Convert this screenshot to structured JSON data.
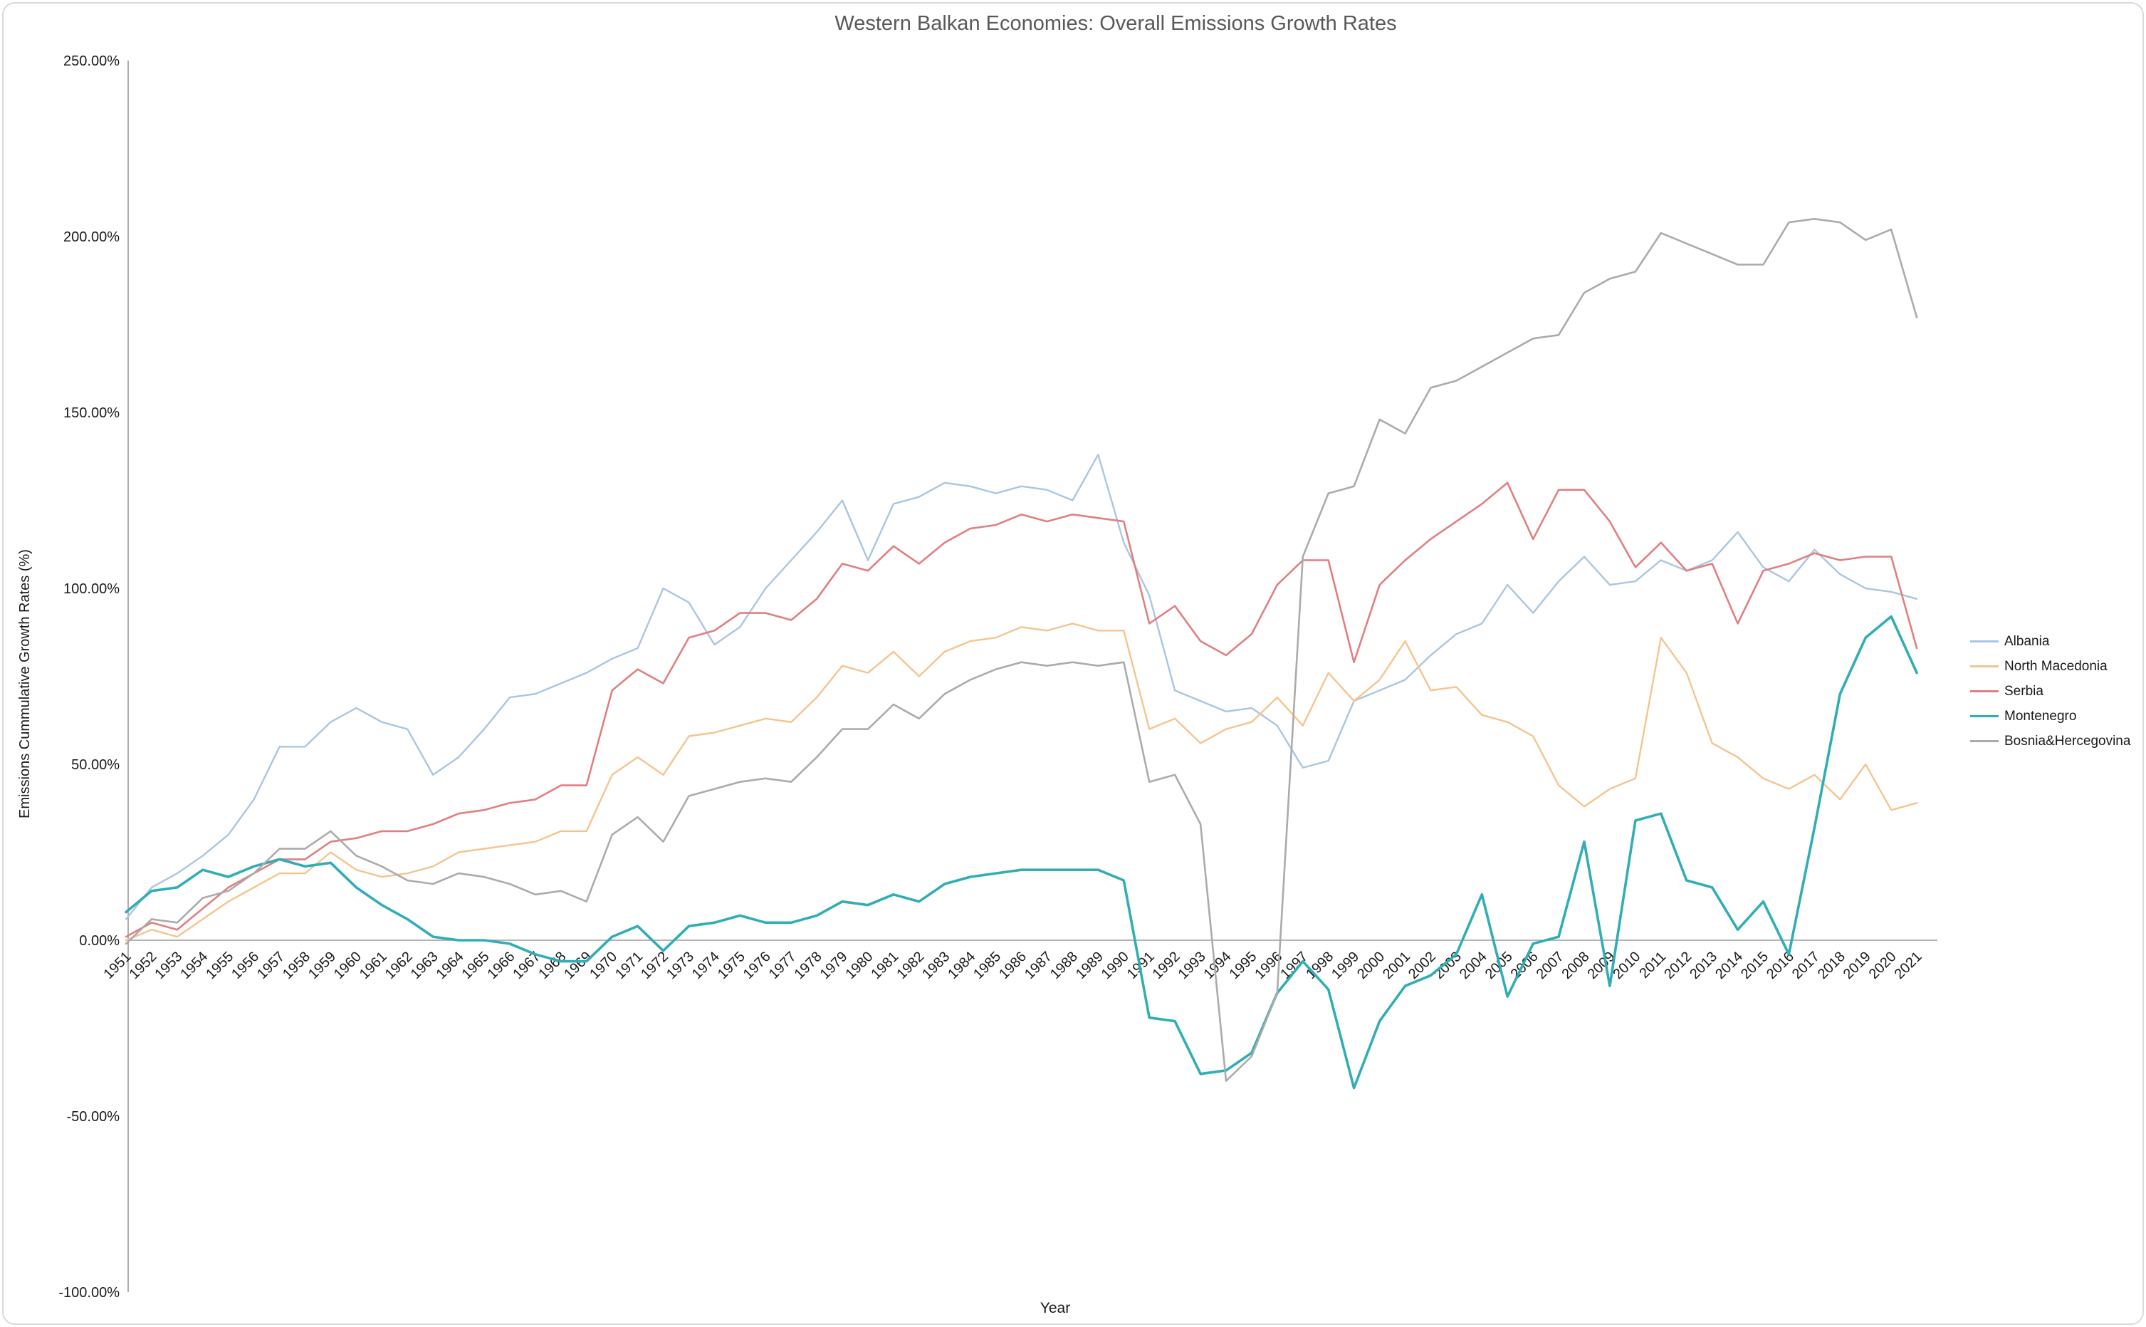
{
  "window": {
    "title": "Western Balkan Economies: Overall Emissions Growth Rates"
  },
  "chart_data": {
    "type": "line",
    "title": "Western Balkan Economies: Overall Emissions Growth Rates",
    "xlabel": "Year",
    "ylabel": "Emissions Cummulative Growth Rates (%)",
    "legend_position": "right",
    "grid": false,
    "ylim": [
      -100,
      250
    ],
    "y_tick_labels": [
      "250.00%",
      "200.00%",
      "150.00%",
      "100.00%",
      "50.00%",
      "0.00%",
      "-50.00%",
      "-100.00%"
    ],
    "y_tick_values": [
      250,
      200,
      150,
      100,
      50,
      0,
      -50,
      -100
    ],
    "x": [
      1951,
      1952,
      1953,
      1954,
      1955,
      1956,
      1957,
      1958,
      1959,
      1960,
      1961,
      1962,
      1963,
      1964,
      1965,
      1966,
      1967,
      1968,
      1969,
      1970,
      1971,
      1972,
      1973,
      1974,
      1975,
      1976,
      1977,
      1978,
      1979,
      1980,
      1981,
      1982,
      1983,
      1984,
      1985,
      1986,
      1987,
      1988,
      1989,
      1990,
      1991,
      1992,
      1993,
      1994,
      1995,
      1996,
      1997,
      1998,
      1999,
      2000,
      2001,
      2002,
      2003,
      2004,
      2005,
      2006,
      2007,
      2008,
      2009,
      2010,
      2011,
      2012,
      2013,
      2014,
      2015,
      2016,
      2017,
      2018,
      2019,
      2020,
      2021
    ],
    "axis_color": "#9b9b9b",
    "tick_label_color": "#1a1a1a",
    "series": [
      {
        "name": "Albania",
        "color": "#a9c6e1",
        "width": 2.4,
        "values": [
          6,
          15,
          19,
          24,
          30,
          40,
          55,
          55,
          62,
          66,
          62,
          60,
          47,
          52,
          60,
          69,
          70,
          73,
          76,
          80,
          83,
          100,
          96,
          84,
          89,
          100,
          108,
          116,
          125,
          108,
          124,
          126,
          130,
          129,
          127,
          129,
          128,
          125,
          138,
          113,
          98,
          71,
          68,
          65,
          66,
          61,
          49,
          51,
          68,
          71,
          74,
          81,
          87,
          90,
          101,
          93,
          102,
          109,
          101,
          102,
          108,
          105,
          108,
          116,
          106,
          102,
          111,
          104,
          100,
          99,
          97
        ]
      },
      {
        "name": "North Macedonia",
        "color": "#f5c48e",
        "width": 2.4,
        "values": [
          0,
          3,
          1,
          6,
          11,
          15,
          19,
          19,
          25,
          20,
          18,
          19,
          21,
          25,
          26,
          27,
          28,
          31,
          31,
          47,
          52,
          47,
          58,
          59,
          61,
          63,
          62,
          69,
          78,
          76,
          82,
          75,
          82,
          85,
          86,
          89,
          88,
          90,
          88,
          88,
          60,
          63,
          56,
          60,
          62,
          69,
          61,
          76,
          68,
          74,
          85,
          71,
          72,
          64,
          62,
          58,
          44,
          38,
          43,
          46,
          86,
          76,
          56,
          52,
          46,
          43,
          47,
          40,
          50,
          37,
          39
        ]
      },
      {
        "name": "Serbia",
        "color": "#e07f80",
        "width": 2.6,
        "values": [
          1,
          5,
          3,
          9,
          15,
          19,
          23,
          23,
          28,
          29,
          31,
          31,
          33,
          36,
          37,
          39,
          40,
          44,
          44,
          71,
          77,
          73,
          86,
          88,
          93,
          93,
          91,
          97,
          107,
          105,
          112,
          107,
          113,
          117,
          118,
          121,
          119,
          121,
          120,
          119,
          90,
          95,
          85,
          81,
          87,
          101,
          108,
          108,
          79,
          101,
          108,
          114,
          119,
          124,
          130,
          114,
          128,
          128,
          119,
          106,
          113,
          105,
          107,
          90,
          105,
          107,
          110,
          108,
          109,
          109,
          83
        ]
      },
      {
        "name": "Montenegro",
        "color": "#30adb5",
        "width": 3.6,
        "values": [
          8,
          14,
          15,
          20,
          18,
          21,
          23,
          21,
          22,
          15,
          10,
          6,
          1,
          0,
          0,
          -1,
          -4,
          -6,
          -6,
          1,
          4,
          -3,
          4,
          5,
          7,
          5,
          5,
          7,
          11,
          10,
          13,
          11,
          16,
          18,
          19,
          20,
          20,
          20,
          20,
          17,
          -22,
          -23,
          -38,
          -37,
          -32,
          -15,
          -6,
          -14,
          -42,
          -23,
          -13,
          -10,
          -4,
          13,
          -16,
          -1,
          1,
          28,
          -13,
          34,
          36,
          17,
          15,
          3,
          11,
          -4,
          32,
          70,
          86,
          92,
          76
        ]
      },
      {
        "name": "Bosnia&Hercegovina",
        "color": "#ababab",
        "width": 2.6,
        "values": [
          -1,
          6,
          5,
          12,
          14,
          19,
          26,
          26,
          31,
          24,
          21,
          17,
          16,
          19,
          18,
          16,
          13,
          14,
          11,
          30,
          35,
          28,
          41,
          43,
          45,
          46,
          45,
          52,
          60,
          60,
          67,
          63,
          70,
          74,
          77,
          79,
          78,
          79,
          78,
          79,
          45,
          47,
          33,
          -40,
          -33,
          -15,
          109,
          127,
          129,
          148,
          144,
          157,
          159,
          163,
          167,
          171,
          172,
          184,
          188,
          190,
          201,
          198,
          195,
          192,
          192,
          204,
          205,
          204,
          199,
          202,
          177
        ]
      }
    ]
  }
}
